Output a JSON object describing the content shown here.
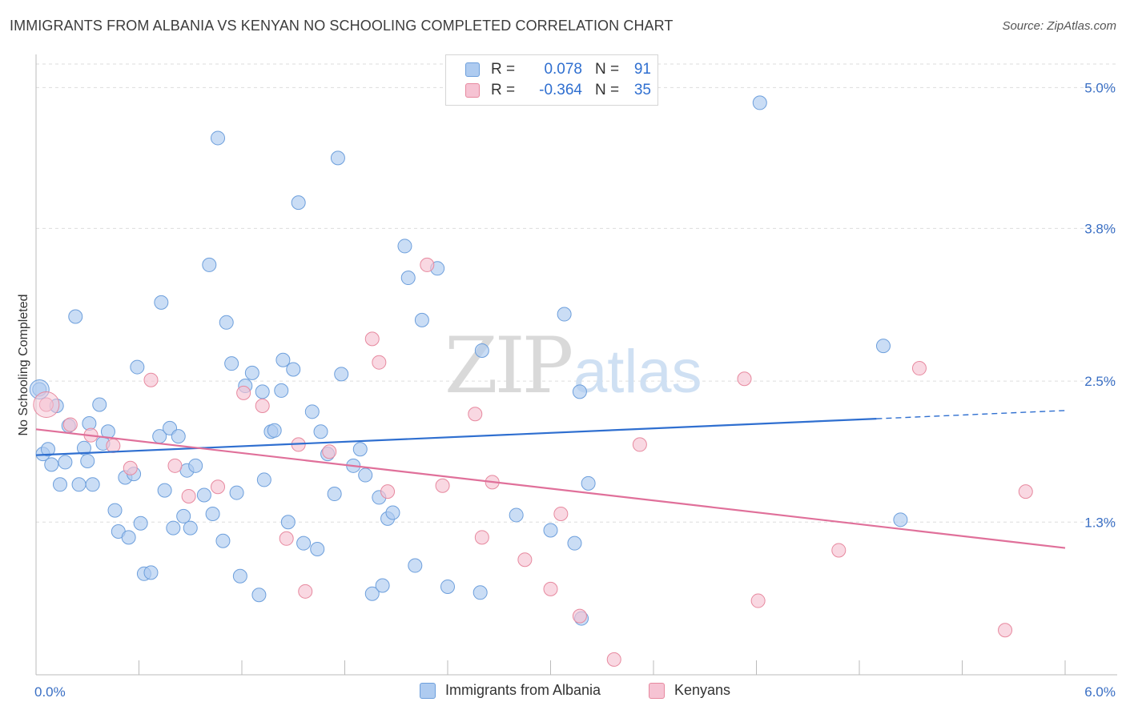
{
  "title": "IMMIGRANTS FROM ALBANIA VS KENYAN NO SCHOOLING COMPLETED CORRELATION CHART",
  "source": "Source: ZipAtlas.com",
  "watermark": {
    "zip": "ZIP",
    "atlas": "atlas"
  },
  "colors": {
    "blue_fill": "#aecbf0",
    "blue_stroke": "#6d9fdc",
    "blue_line": "#2f6fd0",
    "pink_fill": "#f6c3d3",
    "pink_stroke": "#e7899f",
    "pink_line": "#e0709a",
    "axis_text": "#3a6fc4",
    "grid": "#dddddd"
  },
  "legend": {
    "rows": [
      {
        "r_label": "R =",
        "r_value": "0.078",
        "n_label": "N =",
        "n_value": "91"
      },
      {
        "r_label": "R =",
        "r_value": "-0.364",
        "n_label": "N =",
        "n_value": "35"
      }
    ]
  },
  "bottom_legend": {
    "series1": "Immigrants from Albania",
    "series2": "Kenyans"
  },
  "chart_data": {
    "type": "scatter",
    "ylabel": "No Schooling Completed",
    "xlim": [
      0.0,
      6.0
    ],
    "ylim": [
      0.0,
      5.2
    ],
    "x_tick_labels": [
      {
        "value": 0.0,
        "label": "0.0%"
      },
      {
        "value": 6.0,
        "label": "6.0%"
      }
    ],
    "y_tick_labels": [
      {
        "value": 1.3,
        "label": "1.3%"
      },
      {
        "value": 2.5,
        "label": "2.5%"
      },
      {
        "value": 3.8,
        "label": "3.8%"
      },
      {
        "value": 5.0,
        "label": "5.0%"
      }
    ],
    "series": [
      {
        "name": "Immigrants from Albania",
        "trend": {
          "x0": 0.0,
          "y0": 1.87,
          "x1": 4.9,
          "y1": 2.18,
          "x_dash_end": 6.0,
          "y_dash_end": 2.25
        },
        "points": [
          [
            0.02,
            2.43
          ],
          [
            0.04,
            1.88
          ],
          [
            0.07,
            1.92
          ],
          [
            0.09,
            1.79
          ],
          [
            0.12,
            2.29
          ],
          [
            0.14,
            1.62
          ],
          [
            0.17,
            1.81
          ],
          [
            0.19,
            2.12
          ],
          [
            0.23,
            3.05
          ],
          [
            0.25,
            1.62
          ],
          [
            0.28,
            1.93
          ],
          [
            0.3,
            1.82
          ],
          [
            0.33,
            1.62
          ],
          [
            0.37,
            2.3
          ],
          [
            0.39,
            1.97
          ],
          [
            0.42,
            2.07
          ],
          [
            0.46,
            1.4
          ],
          [
            0.48,
            1.22
          ],
          [
            0.52,
            1.68
          ],
          [
            0.54,
            1.17
          ],
          [
            0.57,
            1.71
          ],
          [
            0.59,
            2.62
          ],
          [
            0.61,
            1.29
          ],
          [
            0.63,
            0.86
          ],
          [
            0.67,
            0.87
          ],
          [
            0.72,
            2.03
          ],
          [
            0.73,
            3.17
          ],
          [
            0.75,
            1.57
          ],
          [
            0.78,
            2.1
          ],
          [
            0.8,
            1.25
          ],
          [
            0.83,
            2.03
          ],
          [
            0.86,
            1.35
          ],
          [
            0.88,
            1.74
          ],
          [
            0.9,
            1.25
          ],
          [
            0.93,
            1.78
          ],
          [
            0.98,
            1.53
          ],
          [
            1.01,
            3.49
          ],
          [
            1.03,
            1.37
          ],
          [
            1.06,
            4.57
          ],
          [
            1.09,
            1.14
          ],
          [
            1.11,
            3.0
          ],
          [
            1.14,
            2.65
          ],
          [
            1.17,
            1.55
          ],
          [
            1.19,
            0.84
          ],
          [
            1.22,
            2.46
          ],
          [
            1.26,
            2.57
          ],
          [
            1.3,
            0.68
          ],
          [
            1.32,
            2.41
          ],
          [
            1.33,
            1.66
          ],
          [
            1.37,
            2.07
          ],
          [
            1.39,
            2.08
          ],
          [
            1.43,
            2.42
          ],
          [
            1.44,
            2.68
          ],
          [
            1.47,
            1.3
          ],
          [
            1.5,
            2.6
          ],
          [
            1.53,
            4.02
          ],
          [
            1.56,
            1.12
          ],
          [
            1.61,
            2.24
          ],
          [
            1.64,
            1.07
          ],
          [
            1.66,
            2.07
          ],
          [
            1.7,
            1.88
          ],
          [
            1.74,
            1.54
          ],
          [
            1.76,
            4.4
          ],
          [
            1.78,
            2.56
          ],
          [
            1.85,
            1.78
          ],
          [
            1.89,
            1.92
          ],
          [
            1.92,
            1.7
          ],
          [
            1.96,
            0.69
          ],
          [
            2.0,
            1.51
          ],
          [
            2.02,
            0.76
          ],
          [
            2.05,
            1.33
          ],
          [
            2.08,
            1.38
          ],
          [
            2.15,
            3.65
          ],
          [
            2.17,
            3.38
          ],
          [
            2.21,
            0.93
          ],
          [
            2.25,
            3.02
          ],
          [
            2.34,
            3.46
          ],
          [
            2.4,
            0.75
          ],
          [
            2.59,
            0.7
          ],
          [
            2.6,
            2.76
          ],
          [
            2.8,
            1.36
          ],
          [
            3.0,
            1.23
          ],
          [
            3.08,
            3.07
          ],
          [
            3.14,
            1.12
          ],
          [
            3.17,
            2.41
          ],
          [
            3.18,
            0.48
          ],
          [
            3.22,
            1.63
          ],
          [
            4.22,
            4.87
          ],
          [
            4.94,
            2.8
          ],
          [
            5.04,
            1.32
          ],
          [
            0.31,
            2.14
          ]
        ]
      },
      {
        "name": "Kenyans",
        "trend": {
          "x0": 0.0,
          "y0": 2.09,
          "x1": 6.0,
          "y1": 1.08
        },
        "points": [
          [
            0.06,
            2.3
          ],
          [
            0.2,
            2.13
          ],
          [
            0.32,
            2.04
          ],
          [
            0.45,
            1.95
          ],
          [
            0.55,
            1.76
          ],
          [
            0.67,
            2.51
          ],
          [
            0.81,
            1.78
          ],
          [
            0.89,
            1.52
          ],
          [
            1.06,
            1.6
          ],
          [
            1.21,
            2.4
          ],
          [
            1.32,
            2.29
          ],
          [
            1.46,
            1.16
          ],
          [
            1.53,
            1.96
          ],
          [
            1.57,
            0.71
          ],
          [
            1.71,
            1.9
          ],
          [
            1.96,
            2.86
          ],
          [
            2.0,
            2.66
          ],
          [
            2.05,
            1.56
          ],
          [
            2.28,
            3.49
          ],
          [
            2.37,
            1.61
          ],
          [
            2.56,
            2.22
          ],
          [
            2.6,
            1.17
          ],
          [
            2.66,
            1.64
          ],
          [
            2.85,
            0.98
          ],
          [
            3.0,
            0.73
          ],
          [
            3.06,
            1.37
          ],
          [
            3.17,
            0.5
          ],
          [
            3.37,
            0.13
          ],
          [
            3.52,
            1.96
          ],
          [
            4.13,
            2.52
          ],
          [
            4.21,
            0.63
          ],
          [
            4.68,
            1.06
          ],
          [
            5.15,
            2.61
          ],
          [
            5.65,
            0.38
          ],
          [
            5.77,
            1.56
          ]
        ]
      }
    ]
  }
}
